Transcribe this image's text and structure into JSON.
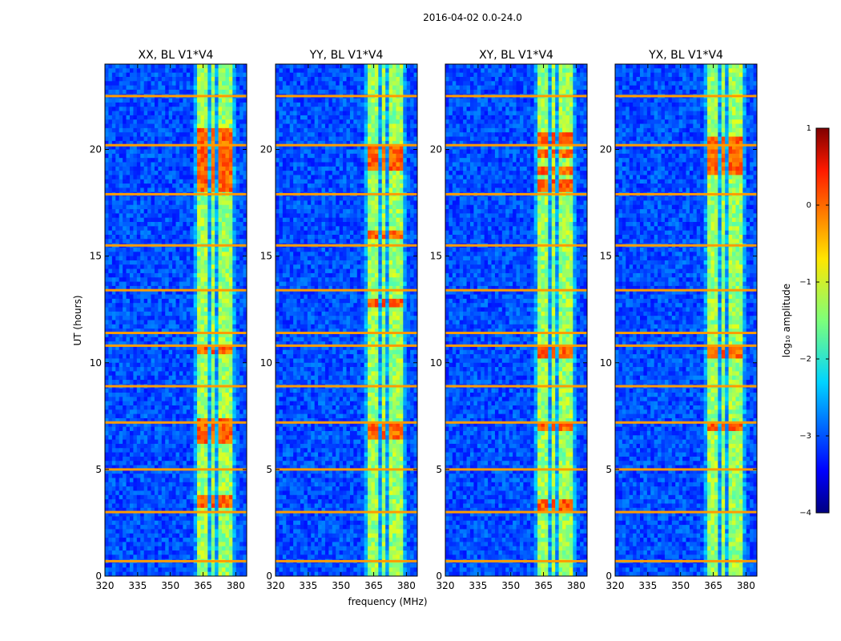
{
  "chart_data": {
    "type": "heatmap",
    "suptitle": "2016-04-02 0.0-24.0",
    "xlabel": "frequency (MHz)",
    "ylabel": "UT (hours)",
    "xlim": [
      320,
      385
    ],
    "ylim": [
      0,
      24
    ],
    "xticks": [
      320,
      335,
      350,
      365,
      380
    ],
    "yticks": [
      0,
      5,
      10,
      15,
      20
    ],
    "panels": [
      {
        "title": "XX, BL V1*V4",
        "strong_times": [
          18.3,
          18.8,
          19.3,
          19.8,
          20.3,
          20.8,
          10.6,
          7.2,
          6.8,
          6.4,
          3.5
        ]
      },
      {
        "title": "YY, BL V1*V4",
        "strong_times": [
          19.2,
          19.5,
          19.9,
          7.0,
          6.6,
          16.0,
          12.8
        ]
      },
      {
        "title": "XY, BL V1*V4",
        "strong_times": [
          18.3,
          19.0,
          19.8,
          20.5,
          10.5,
          7.0,
          3.3
        ]
      },
      {
        "title": "YX, BL V1*V4",
        "strong_times": [
          19.0,
          19.4,
          19.8,
          20.3,
          10.5,
          7.0
        ]
      }
    ],
    "rfi_band_mhz": [
      [
        363,
        367
      ],
      [
        368,
        371
      ],
      [
        372,
        375
      ],
      [
        376,
        379
      ]
    ],
    "rfi_times_hours": [
      22.5,
      20.2,
      17.9,
      15.5,
      13.4,
      11.4,
      10.8,
      8.9,
      7.2,
      5.0,
      3.0,
      0.7
    ],
    "colorbar": {
      "label": "log₁₀ amplitude",
      "min": -4,
      "max": 1,
      "ticks": [
        1,
        0,
        -1,
        -2,
        -3,
        -4
      ],
      "tick_labels": [
        "1",
        "0",
        "−1",
        "−2",
        "−3",
        "−4"
      ],
      "colormap": "jet"
    }
  }
}
